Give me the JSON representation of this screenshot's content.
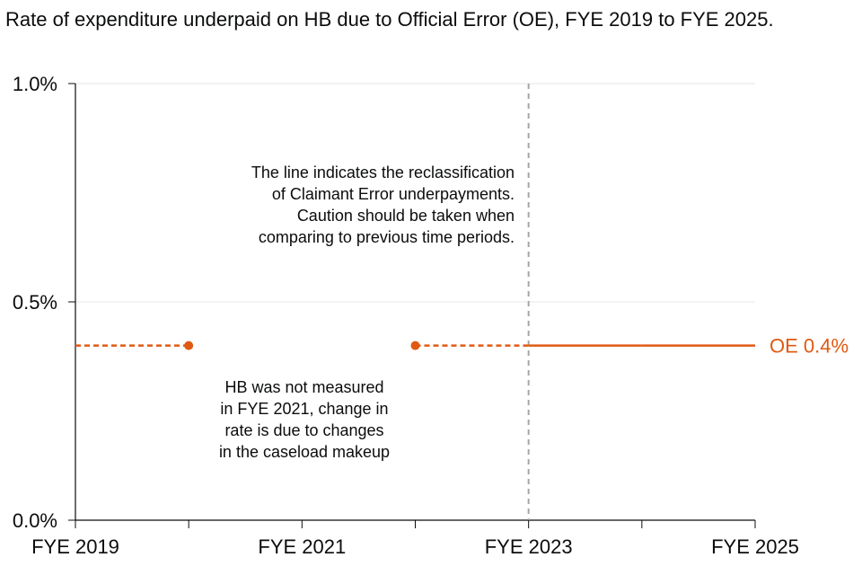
{
  "title": "Rate of expenditure underpaid on HB due to Official Error (OE), FYE 2019 to FYE 2025.",
  "colors": {
    "series": "#e05a12",
    "axis": "#0b0c0c",
    "grid": "#e6e6e6",
    "refline": "#a6a6a6"
  },
  "chart_data": {
    "type": "line",
    "title": "Rate of expenditure underpaid on HB due to Official Error (OE), FYE 2019 to FYE 2025.",
    "x": [
      "FYE 2019",
      "FYE 2020",
      "FYE 2021",
      "FYE 2022",
      "FYE 2023",
      "FYE 2024",
      "FYE 2025"
    ],
    "x_tick_labels": [
      "FYE 2019",
      "FYE 2021",
      "FYE 2023",
      "FYE 2025"
    ],
    "y_tick_labels": [
      "0.0%",
      "0.5%",
      "1.0%"
    ],
    "ylim": [
      0,
      1.0
    ],
    "y_unit": "%",
    "grid": true,
    "series": [
      {
        "name": "OE",
        "end_label": "OE 0.4%",
        "values": [
          0.4,
          0.4,
          null,
          0.4,
          0.4,
          0.4,
          0.4
        ],
        "dashed_segments": [
          [
            "FYE 2019",
            "FYE 2020"
          ],
          [
            "FYE 2022",
            "FYE 2023"
          ]
        ],
        "markers": [
          "FYE 2020",
          "FYE 2022"
        ]
      }
    ],
    "reference_line": {
      "x": "FYE 2023",
      "style": "dashed"
    },
    "annotations": [
      {
        "id": "reclass",
        "lines": [
          "The line indicates the reclassification",
          "of Claimant Error underpayments.",
          "Caution should be taken when",
          "comparing to previous time periods."
        ]
      },
      {
        "id": "not-measured",
        "lines": [
          "HB was not measured",
          "in FYE 2021, change in",
          "rate is due to changes",
          "in the caseload makeup"
        ]
      }
    ]
  }
}
